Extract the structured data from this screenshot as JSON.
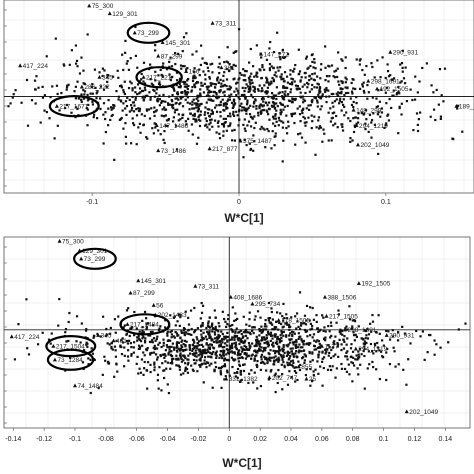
{
  "chart_data": [
    {
      "type": "scatter",
      "xlabel": "W*C[1]",
      "xlim": [
        -0.16,
        0.16
      ],
      "ylim": [
        -0.05,
        0.05
      ],
      "xticks": [
        -0.1,
        0,
        0.1
      ],
      "grid": true,
      "cloud": {
        "center": [
          0.0,
          0.0
        ],
        "spread": [
          0.065,
          0.011
        ],
        "count": 1400
      },
      "points": [
        {
          "label": "75_300",
          "x": -0.102,
          "y": 0.047,
          "circled": false
        },
        {
          "label": "129_301",
          "x": -0.088,
          "y": 0.043,
          "circled": false
        },
        {
          "label": "73_299",
          "x": -0.071,
          "y": 0.033,
          "circled": true
        },
        {
          "label": "73_311",
          "x": -0.018,
          "y": 0.038,
          "circled": false
        },
        {
          "label": "145_301",
          "x": -0.052,
          "y": 0.028,
          "circled": false
        },
        {
          "label": "87_299",
          "x": -0.055,
          "y": 0.021,
          "circled": false
        },
        {
          "label": "147_272",
          "x": 0.015,
          "y": 0.022,
          "circled": false
        },
        {
          "label": "290_931",
          "x": 0.103,
          "y": 0.023,
          "circled": false
        },
        {
          "label": "417_224",
          "x": -0.149,
          "y": 0.016,
          "circled": false
        },
        {
          "label": "217_221",
          "x": -0.065,
          "y": 0.01,
          "circled": true
        },
        {
          "label": "345",
          "x": -0.095,
          "y": 0.01,
          "circled": false
        },
        {
          "label": "286_222",
          "x": -0.107,
          "y": 0.005,
          "circled": false
        },
        {
          "label": "166",
          "x": -0.036,
          "y": 0.013,
          "circled": false
        },
        {
          "label": "381",
          "x": -0.012,
          "y": 0.015,
          "circled": false
        },
        {
          "label": "298_1691",
          "x": 0.088,
          "y": 0.008,
          "circled": false
        },
        {
          "label": "192_1505",
          "x": 0.094,
          "y": 0.004,
          "circled": false
        },
        {
          "label": "217_1671",
          "x": -0.124,
          "y": -0.005,
          "circled": true
        },
        {
          "label": "148_299",
          "x": 0.078,
          "y": -0.007,
          "circled": false
        },
        {
          "label": "189_300",
          "x": 0.148,
          "y": -0.005,
          "circled": false
        },
        {
          "label": "294_1219",
          "x": 0.08,
          "y": -0.015,
          "circled": false
        },
        {
          "label": "147_1486",
          "x": -0.056,
          "y": -0.015,
          "circled": false
        },
        {
          "label": "375_1487",
          "x": 0.001,
          "y": -0.023,
          "circled": false
        },
        {
          "label": "202_1049",
          "x": 0.081,
          "y": -0.025,
          "circled": false
        },
        {
          "label": "73_1486",
          "x": -0.055,
          "y": -0.028,
          "circled": false
        },
        {
          "label": "217_877",
          "x": -0.02,
          "y": -0.027,
          "circled": false
        }
      ]
    },
    {
      "type": "scatter",
      "xlabel": "W*C[1]",
      "xlim": [
        -0.146,
        0.156
      ],
      "ylim": [
        -0.072,
        0.068
      ],
      "xticks": [
        -0.14,
        -0.12,
        -0.1,
        -0.08,
        -0.06,
        -0.04,
        -0.02,
        0,
        0.02,
        0.04,
        0.06,
        0.08,
        0.1,
        0.12,
        0.14
      ],
      "grid": true,
      "cloud": {
        "center": [
          0.005,
          -0.012
        ],
        "spread": [
          0.052,
          0.012
        ],
        "count": 1400
      },
      "points": [
        {
          "label": "75_300",
          "x": -0.11,
          "y": 0.065,
          "circled": false
        },
        {
          "label": "129_301",
          "x": -0.097,
          "y": 0.058,
          "circled": false
        },
        {
          "label": "73_299",
          "x": -0.096,
          "y": 0.052,
          "circled": true
        },
        {
          "label": "145_301",
          "x": -0.059,
          "y": 0.036,
          "circled": false
        },
        {
          "label": "73_311",
          "x": -0.022,
          "y": 0.032,
          "circled": false
        },
        {
          "label": "192_1505",
          "x": 0.084,
          "y": 0.034,
          "circled": false
        },
        {
          "label": "87_299",
          "x": -0.064,
          "y": 0.027,
          "circled": false
        },
        {
          "label": "408_1686",
          "x": 0.001,
          "y": 0.024,
          "circled": false
        },
        {
          "label": "388_1506",
          "x": 0.062,
          "y": 0.024,
          "circled": false
        },
        {
          "label": "56",
          "x": -0.049,
          "y": 0.018,
          "circled": false
        },
        {
          "label": "295_734",
          "x": 0.015,
          "y": 0.019,
          "circled": false
        },
        {
          "label": "202_1483",
          "x": -0.048,
          "y": 0.011,
          "circled": false
        },
        {
          "label": "217_1484",
          "x": -0.066,
          "y": 0.004,
          "circled": true
        },
        {
          "label": "217_1505",
          "x": 0.063,
          "y": 0.01,
          "circled": false
        },
        {
          "label": "178_1505",
          "x": 0.032,
          "y": 0.007,
          "circled": false
        },
        {
          "label": "298_1691",
          "x": 0.075,
          "y": 0.0,
          "circled": false
        },
        {
          "label": "290_931",
          "x": 0.102,
          "y": -0.004,
          "circled": false
        },
        {
          "label": "417_224",
          "x": -0.141,
          "y": -0.005,
          "circled": false
        },
        {
          "label": "345",
          "x": -0.085,
          "y": -0.004,
          "circled": false
        },
        {
          "label": "461",
          "x": -0.075,
          "y": -0.008,
          "circled": false
        },
        {
          "label": "1137",
          "x": 0.06,
          "y": -0.012,
          "circled": false
        },
        {
          "label": "294_1219",
          "x": 0.082,
          "y": -0.014,
          "circled": false
        },
        {
          "label": "217_1504",
          "x": -0.114,
          "y": -0.012,
          "circled": true
        },
        {
          "label": "73_1284",
          "x": -0.113,
          "y": -0.022,
          "circled": true
        },
        {
          "label": "855",
          "x": 0.045,
          "y": -0.027,
          "circled": false
        },
        {
          "label": "331_1382",
          "x": -0.002,
          "y": -0.036,
          "circled": false
        },
        {
          "label": "202_747",
          "x": 0.026,
          "y": -0.035,
          "circled": false
        },
        {
          "label": "25",
          "x": 0.05,
          "y": -0.036,
          "circled": false
        },
        {
          "label": "74_1484",
          "x": -0.1,
          "y": -0.041,
          "circled": false
        },
        {
          "label": "202_1049",
          "x": 0.115,
          "y": -0.06,
          "circled": false
        }
      ]
    }
  ]
}
